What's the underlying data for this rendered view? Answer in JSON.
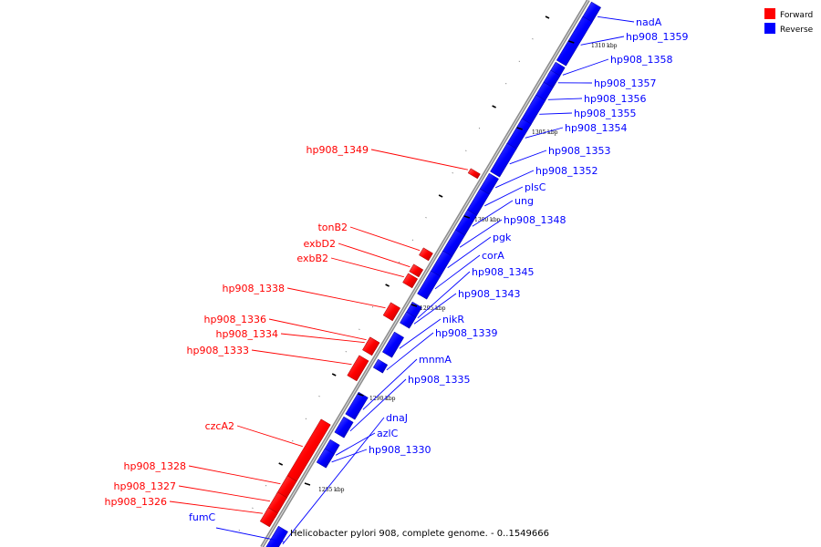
{
  "caption": "Helicobacter pylori 908, complete genome. - 0..1549666",
  "legend": [
    {
      "label": "Forward",
      "color": "#ff0000"
    },
    {
      "label": "Reverse",
      "color": "#0000ff"
    }
  ],
  "colors": {
    "forward": "#ff0000",
    "reverse": "#0000ff",
    "backbone": "#808080"
  },
  "ticks": [
    "1310 kbp",
    "1305 kbp",
    "1300 kbp",
    "1295 kbp",
    "1290 kbp",
    "1285 kbp"
  ],
  "forward_genes": [
    "hp908_1349",
    "tonB2",
    "exbD2",
    "exbB2",
    "hp908_1338",
    "hp908_1336",
    "hp908_1334",
    "hp908_1333",
    "czcA2",
    "hp908_1328",
    "hp908_1327",
    "hp908_1326"
  ],
  "reverse_genes": [
    "nadA",
    "hp908_1359",
    "hp908_1358",
    "hp908_1357",
    "hp908_1356",
    "hp908_1355",
    "hp908_1354",
    "hp908_1353",
    "hp908_1352",
    "plsC",
    "ung",
    "hp908_1348",
    "pgk",
    "corA",
    "hp908_1345",
    "hp908_1343",
    "nikR",
    "hp908_1339",
    "mnmA",
    "hp908_1335",
    "dnaJ",
    "azlC",
    "hp908_1330",
    "fumC"
  ]
}
